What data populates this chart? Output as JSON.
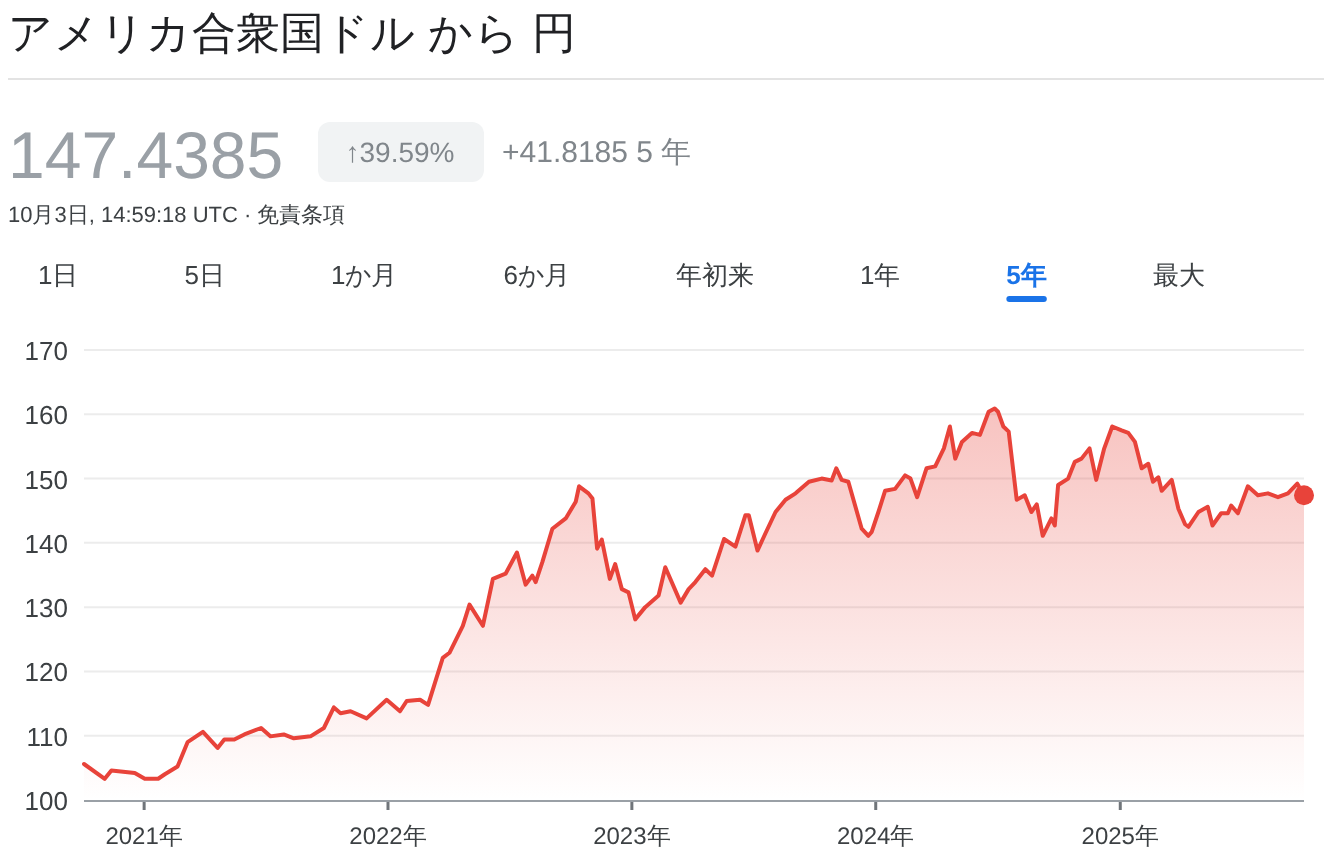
{
  "chart_data": {
    "type": "area",
    "title": "アメリカ合衆国ドル から 円",
    "subtitle": "147.4385",
    "annotations": [
      "↑39.59%",
      "+41.8185 5 年",
      "10月3日, 14:59:18 UTC · 免責条項",
      "1日",
      "5日",
      "1か月",
      "6か月",
      "年初来",
      "1年",
      "5年",
      "最大"
    ],
    "xlim": [
      "2020-10-03",
      "2025-10-03"
    ],
    "xticks": [
      {
        "value": "2021-01-01",
        "label": "2021年"
      },
      {
        "value": "2022-01-01",
        "label": "2022年"
      },
      {
        "value": "2023-01-01",
        "label": "2023年"
      },
      {
        "value": "2024-01-01",
        "label": "2024年"
      },
      {
        "value": "2025-01-01",
        "label": "2025年"
      }
    ],
    "ylim": [
      100,
      170
    ],
    "yticks": [
      100,
      110,
      120,
      130,
      140,
      150,
      160,
      170
    ],
    "grid": "y",
    "series": [
      {
        "color": "#e8433a",
        "x": [
          "2020-10-03",
          "2020-11-03",
          "2020-11-13",
          "2020-12-18",
          "2021-01-02",
          "2021-01-22",
          "2021-02-01",
          "2021-02-20",
          "2021-03-07",
          "2021-03-30",
          "2021-04-21",
          "2021-05-01",
          "2021-05-16",
          "2021-05-31",
          "2021-06-25",
          "2021-07-09",
          "2021-07-29",
          "2021-08-13",
          "2021-09-07",
          "2021-09-27",
          "2021-10-12",
          "2021-10-22",
          "2021-11-06",
          "2021-11-30",
          "2021-12-30",
          "2022-01-19",
          "2022-01-29",
          "2022-02-18",
          "2022-03-02",
          "2022-03-14",
          "2022-03-24",
          "2022-04-03",
          "2022-04-23",
          "2022-05-03",
          "2022-05-23",
          "2022-06-07",
          "2022-06-26",
          "2022-07-13",
          "2022-07-26",
          "2022-08-05",
          "2022-08-10",
          "2022-08-20",
          "2022-09-04",
          "2022-09-24",
          "2022-10-09",
          "2022-10-14",
          "2022-10-28",
          "2022-11-03",
          "2022-11-10",
          "2022-11-17",
          "2022-11-29",
          "2022-12-07",
          "2022-12-17",
          "2022-12-27",
          "2023-01-06",
          "2023-01-21",
          "2023-02-10",
          "2023-02-20",
          "2023-03-15",
          "2023-03-27",
          "2023-04-06",
          "2023-04-21",
          "2023-05-01",
          "2023-05-19",
          "2023-06-05",
          "2023-06-20",
          "2023-06-25",
          "2023-07-08",
          "2023-07-20",
          "2023-08-04",
          "2023-08-19",
          "2023-09-03",
          "2023-09-23",
          "2023-10-12",
          "2023-10-27",
          "2023-11-03",
          "2023-11-11",
          "2023-11-21",
          "2023-12-11",
          "2023-12-21",
          "2023-12-26",
          "2024-01-05",
          "2024-01-15",
          "2024-01-30",
          "2024-02-14",
          "2024-02-22",
          "2024-03-03",
          "2024-03-17",
          "2024-03-30",
          "2024-04-12",
          "2024-04-21",
          "2024-04-29",
          "2024-05-09",
          "2024-05-24",
          "2024-06-05",
          "2024-06-18",
          "2024-06-27",
          "2024-07-02",
          "2024-07-10",
          "2024-07-18",
          "2024-07-30",
          "2024-08-11",
          "2024-08-21",
          "2024-08-29",
          "2024-09-07",
          "2024-09-20",
          "2024-09-25",
          "2024-09-30",
          "2024-10-15",
          "2024-10-25",
          "2024-11-04",
          "2024-11-16",
          "2024-11-26",
          "2024-12-08",
          "2024-12-20",
          "2025-01-03",
          "2025-01-13",
          "2025-01-23",
          "2025-02-02",
          "2025-02-12",
          "2025-02-19",
          "2025-02-27",
          "2025-03-04",
          "2025-03-19",
          "2025-03-29",
          "2025-04-08",
          "2025-04-13",
          "2025-04-28",
          "2025-05-12",
          "2025-05-19",
          "2025-06-01",
          "2025-06-11",
          "2025-06-16",
          "2025-06-26",
          "2025-07-11",
          "2025-07-26",
          "2025-08-10",
          "2025-08-25",
          "2025-09-09",
          "2025-09-23",
          "2025-10-03"
        ],
        "values": [
          105.6,
          103.3,
          104.6,
          104.2,
          103.3,
          103.3,
          104.0,
          105.2,
          109.0,
          110.6,
          108.1,
          109.4,
          109.4,
          110.2,
          111.2,
          109.9,
          110.2,
          109.6,
          109.9,
          111.2,
          114.4,
          113.5,
          113.8,
          112.7,
          115.6,
          113.8,
          115.4,
          115.6,
          114.8,
          118.8,
          122.1,
          122.9,
          127.1,
          130.4,
          127.1,
          134.4,
          135.2,
          138.5,
          133.5,
          134.9,
          133.9,
          137.0,
          142.2,
          143.8,
          146.4,
          148.8,
          147.7,
          146.9,
          139.1,
          140.5,
          134.4,
          136.7,
          132.8,
          132.3,
          128.1,
          130.0,
          131.8,
          136.2,
          130.7,
          132.8,
          133.9,
          135.9,
          134.9,
          140.6,
          139.4,
          144.3,
          144.3,
          138.8,
          141.5,
          144.8,
          146.7,
          147.7,
          149.5,
          150.0,
          149.7,
          151.6,
          149.8,
          149.5,
          142.2,
          141.1,
          141.7,
          144.8,
          148.1,
          148.4,
          150.5,
          150.0,
          147.1,
          151.6,
          151.9,
          154.7,
          158.1,
          153.1,
          155.7,
          157.1,
          156.8,
          160.4,
          160.9,
          160.4,
          158.1,
          157.3,
          146.7,
          147.4,
          144.8,
          146.0,
          141.1,
          143.8,
          142.7,
          149.0,
          150.0,
          152.6,
          153.1,
          154.7,
          149.8,
          154.7,
          158.1,
          157.5,
          157.1,
          155.7,
          151.6,
          152.3,
          149.5,
          150.2,
          148.1,
          149.8,
          145.3,
          142.9,
          142.5,
          144.8,
          145.6,
          142.7,
          144.6,
          144.6,
          145.8,
          144.6,
          148.8,
          147.4,
          147.7,
          147.1,
          147.7,
          149.2,
          147.4
        ]
      }
    ]
  }
}
